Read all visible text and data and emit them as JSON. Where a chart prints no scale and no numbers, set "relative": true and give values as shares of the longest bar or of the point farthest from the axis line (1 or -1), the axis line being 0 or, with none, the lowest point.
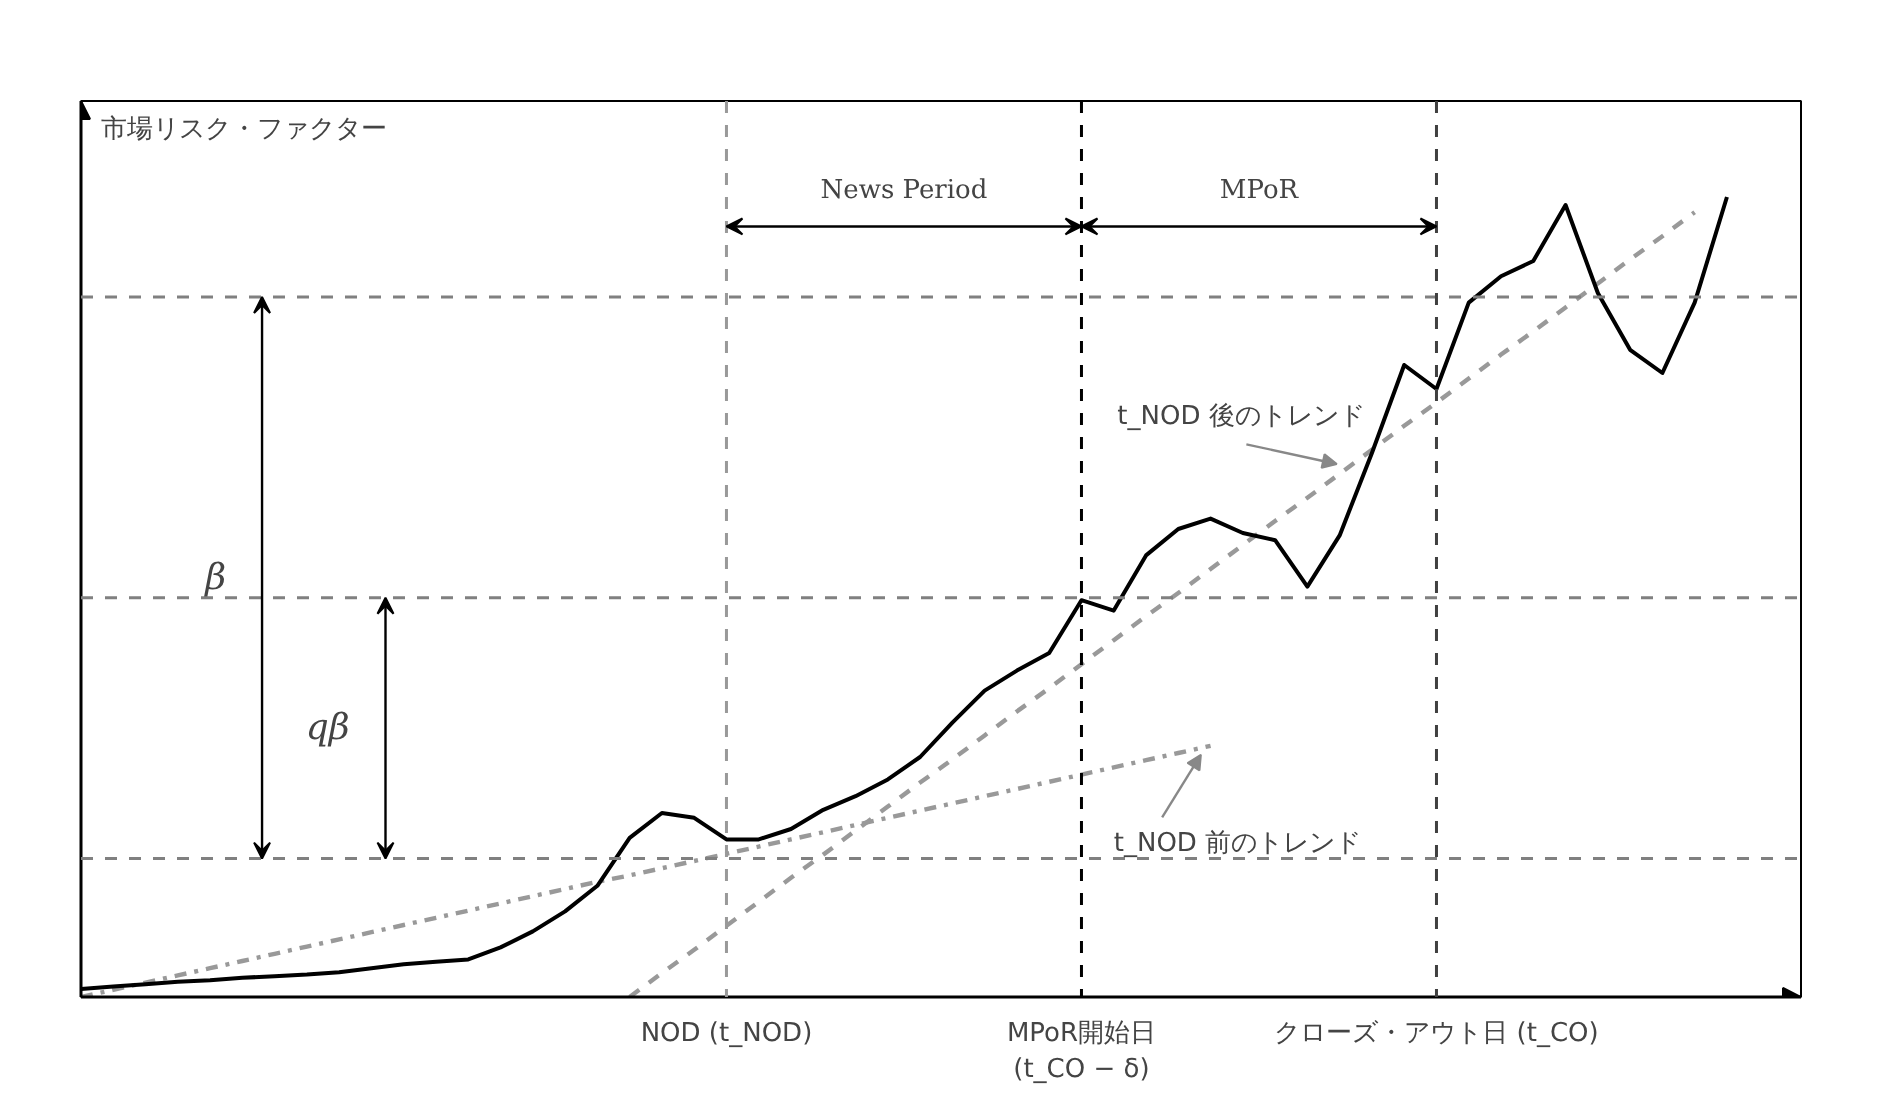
{
  "chart_data": {
    "type": "line",
    "relative": true,
    "ylabel": "市場リスク・ファクター",
    "categories": [
      null,
      null,
      null,
      null,
      null,
      null,
      null,
      null,
      null,
      null,
      null,
      null,
      null,
      null,
      null,
      null,
      null,
      null,
      null,
      null,
      "NOD (t_NOD)",
      null,
      null,
      null,
      null,
      null,
      null,
      null,
      null,
      null,
      null,
      "MPoR開始日\n(t_CO − δ)",
      null,
      null,
      null,
      null,
      null,
      null,
      null,
      null,
      null,
      null,
      "クローズ・アウト日 (t_CO)",
      null,
      null,
      null,
      null,
      null,
      null,
      null,
      null,
      null
    ],
    "tick_labels": "x",
    "grid": false,
    "series": [
      {
        "color": "#000000",
        "line_style": "solid",
        "values": [
          0.01,
          0.013,
          0.016,
          0.019,
          0.021,
          0.024,
          0.026,
          0.028,
          0.031,
          0.036,
          0.041,
          0.044,
          0.047,
          0.062,
          0.082,
          0.107,
          0.139,
          0.199,
          0.23,
          0.224,
          0.197,
          0.197,
          0.21,
          0.234,
          0.251,
          0.272,
          0.3,
          0.343,
          0.383,
          0.408,
          0.43,
          0.496,
          0.483,
          0.552,
          0.585,
          0.598,
          0.58,
          0.571,
          0.513,
          0.577,
          0.68,
          0.79,
          0.76,
          0.868,
          0.901,
          0.92,
          0.99,
          0.88,
          0.809,
          0.78,
          0.868,
          1.0
        ]
      },
      {
        "color": "#999999",
        "line_style": "dashed",
        "values": [
          null,
          null,
          null,
          null,
          null,
          null,
          null,
          null,
          null,
          null,
          null,
          null,
          null,
          null,
          null,
          null,
          null,
          0,
          0.03,
          0.059,
          0.089,
          0.119,
          0.149,
          0.178,
          0.208,
          0.238,
          0.268,
          0.297,
          0.327,
          0.357,
          0.386,
          0.416,
          0.446,
          0.476,
          0.505,
          0.535,
          0.565,
          0.595,
          0.624,
          0.654,
          0.684,
          0.714,
          0.743,
          0.773,
          0.803,
          0.832,
          0.862,
          0.892,
          0.922,
          0.951,
          0.981,
          null
        ]
      },
      {
        "color": "#999999",
        "line_style": "dashdot",
        "values": [
          0,
          0.009,
          0.018,
          0.027,
          0.036,
          0.045,
          0.054,
          0.063,
          0.072,
          0.081,
          0.09,
          0.099,
          0.108,
          0.117,
          0.126,
          0.135,
          0.144,
          0.152,
          0.161,
          0.17,
          0.179,
          0.188,
          0.197,
          0.206,
          0.215,
          0.224,
          0.233,
          0.242,
          0.251,
          0.26,
          0.269,
          0.278,
          0.287,
          0.296,
          0.305,
          0.314,
          null,
          null,
          null,
          null,
          null,
          null,
          null,
          null,
          null,
          null,
          null,
          null,
          null,
          null,
          null,
          null
        ]
      }
    ],
    "ref_lines": [
      {
        "axis": "y",
        "value": 0.875,
        "color": "#808080",
        "line_style": "dashed"
      },
      {
        "axis": "y",
        "value": 0.499,
        "color": "#808080",
        "line_style": "dashed"
      },
      {
        "axis": "y",
        "value": 0.173,
        "color": "#808080",
        "line_style": "dashed"
      },
      {
        "axis": "x",
        "value": "NOD (t_NOD)",
        "color": "#999999",
        "line_style": "dashed"
      },
      {
        "axis": "x",
        "value": "MPoR開始日\n(t_CO − δ)",
        "color": "#000000",
        "line_style": "dashed"
      },
      {
        "axis": "x",
        "value": "クローズ・アウト日 (t_CO)",
        "color": "#404040",
        "line_style": "dashed"
      }
    ],
    "annotations": [
      "News Period",
      "MPoR",
      "β",
      "qβ",
      "t_NOD 後のトレンド",
      "t_NOD 前のトレンド"
    ]
  }
}
